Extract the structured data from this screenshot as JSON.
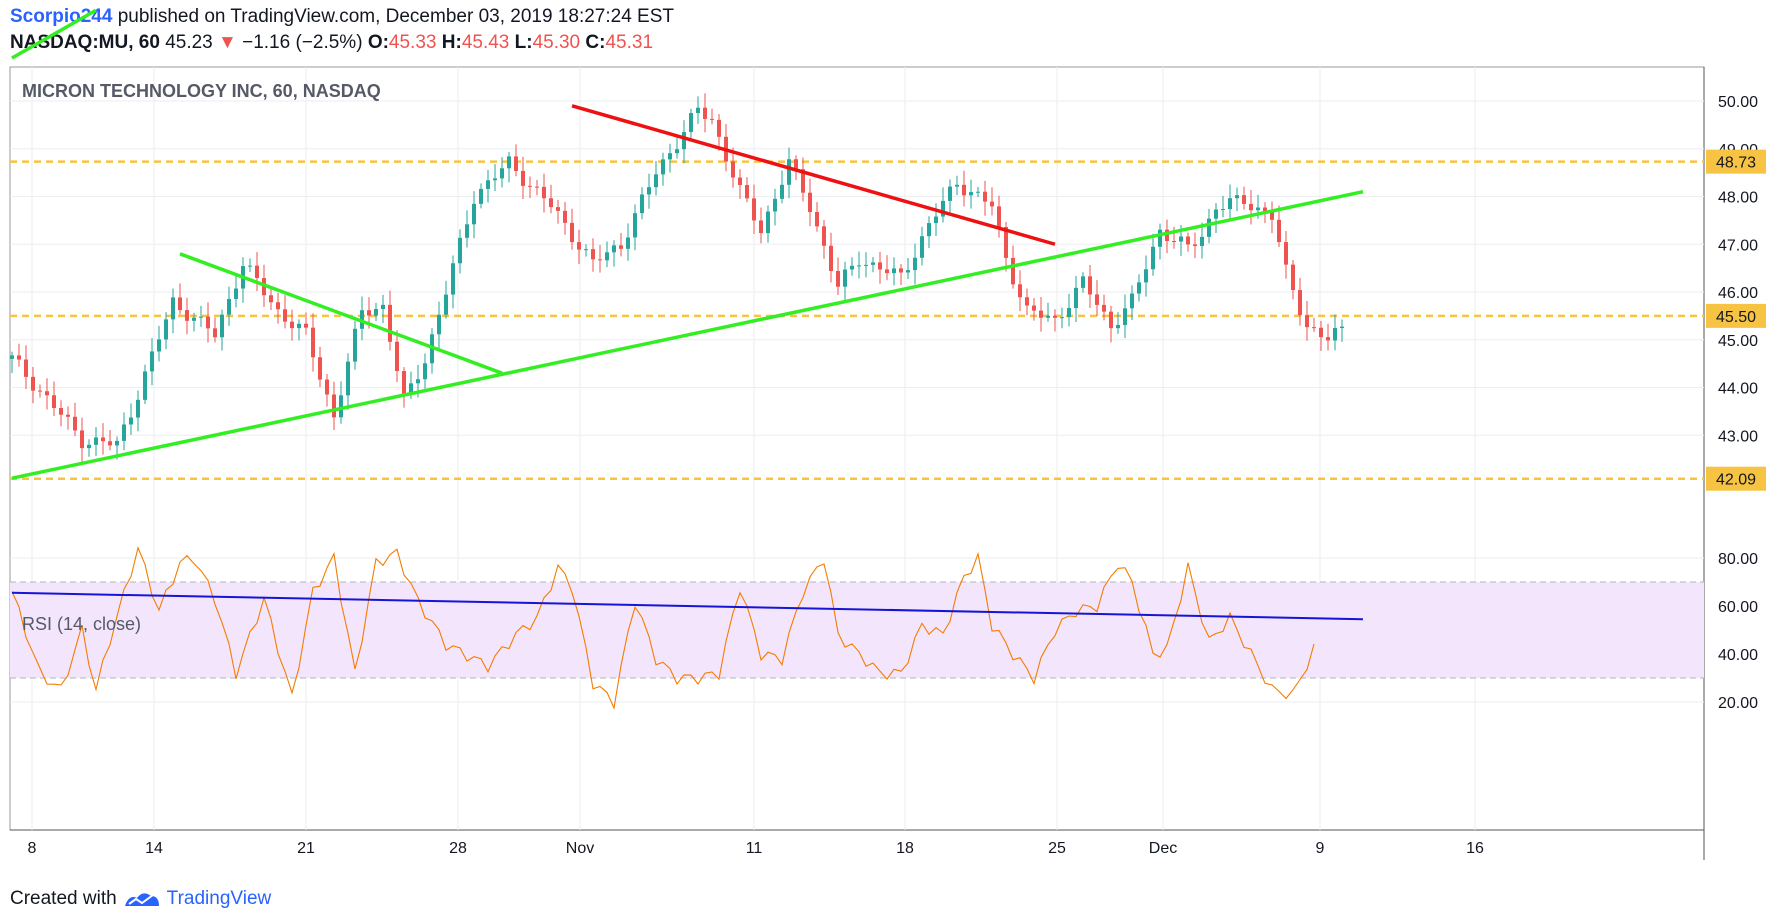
{
  "header": {
    "author": "Scorpio244",
    "published_text": "published on TradingView.com, December 03, 2019 18:27:24 EST",
    "symbol": "NASDAQ:MU, 60",
    "last": "45.23",
    "change_arrow": "▼",
    "change": "−1.16 (−2.5%)",
    "o_label": "O:",
    "o_value": "45.33",
    "h_label": "H:",
    "h_value": "45.43",
    "l_label": "L:",
    "l_value": "45.30",
    "c_label": "C:",
    "c_value": "45.31"
  },
  "footer": {
    "created_with": "Created with",
    "brand": "TradingView"
  },
  "colors": {
    "up": "#26a69a",
    "down": "#ef5350",
    "level": "#f6c343",
    "green_line": "#33ee22",
    "red_line": "#ee1111",
    "rsi_line": "#f57c00",
    "rsi_trend": "#1515d6",
    "rsi_band": "#f3e5fc"
  },
  "chart_data": [
    {
      "type": "candlestick",
      "title": "MICRON TECHNOLOGY INC, 60, NASDAQ",
      "x_ticks": [
        "8",
        "14",
        "21",
        "28",
        "Nov",
        "11",
        "18",
        "25",
        "Dec",
        "9",
        "16"
      ],
      "y_ticks": [
        "50.00",
        "49.00",
        "48.00",
        "47.00",
        "46.00",
        "45.00",
        "44.00",
        "43.00"
      ],
      "ylim": [
        41.1,
        51.0
      ],
      "price_path": [
        [
          0,
          44.6
        ],
        [
          6,
          43.6
        ],
        [
          10,
          42.9
        ],
        [
          15,
          42.8
        ],
        [
          17,
          43.5
        ],
        [
          23,
          45.8
        ],
        [
          29,
          45.1
        ],
        [
          33,
          46.6
        ],
        [
          38,
          45.6
        ],
        [
          42,
          45.1
        ],
        [
          46,
          43.4
        ],
        [
          50,
          45.6
        ],
        [
          53,
          45.7
        ],
        [
          56,
          43.7
        ],
        [
          59,
          44.6
        ],
        [
          62,
          46.0
        ],
        [
          66,
          48.0
        ],
        [
          71,
          48.7
        ],
        [
          77,
          47.8
        ],
        [
          83,
          46.6
        ],
        [
          87,
          47.0
        ],
        [
          92,
          48.5
        ],
        [
          98,
          49.8
        ],
        [
          100,
          49.6
        ],
        [
          104,
          48.1
        ],
        [
          107,
          47.3
        ],
        [
          111,
          48.7
        ],
        [
          114,
          47.8
        ],
        [
          118,
          46.1
        ],
        [
          121,
          46.7
        ],
        [
          127,
          46.3
        ],
        [
          131,
          47.4
        ],
        [
          135,
          48.3
        ],
        [
          140,
          47.8
        ],
        [
          142,
          46.7
        ],
        [
          145,
          45.6
        ],
        [
          149,
          45.4
        ],
        [
          153,
          46.2
        ],
        [
          157,
          45.3
        ],
        [
          160,
          45.8
        ],
        [
          164,
          47.3
        ],
        [
          168,
          46.9
        ],
        [
          170,
          47.2
        ],
        [
          172,
          47.8
        ],
        [
          176,
          47.9
        ],
        [
          180,
          47.6
        ],
        [
          182,
          46.4
        ],
        [
          185,
          45.3
        ],
        [
          188,
          45.0
        ],
        [
          190,
          45.2
        ]
      ],
      "bar_count": 190,
      "levels": [
        "48.73",
        "45.50",
        "42.09"
      ],
      "trendlines": [
        {
          "color": "green",
          "points": [
            [
              0,
              50.9
            ],
            [
              12,
              51.9
            ]
          ]
        },
        {
          "color": "green",
          "points": [
            [
              0,
              42.1
            ],
            [
              193,
              48.1
            ]
          ]
        },
        {
          "color": "green",
          "points": [
            [
              24,
              46.8
            ],
            [
              70,
              44.3
            ]
          ]
        },
        {
          "color": "red",
          "points": [
            [
              80,
              49.9
            ],
            [
              149,
              47.0
            ]
          ]
        }
      ]
    },
    {
      "type": "line",
      "title": "RSI (14, close)",
      "y_ticks": [
        "80.00",
        "60.00",
        "40.00",
        "20.00"
      ],
      "ylim": [
        10,
        90
      ],
      "band": [
        30,
        70
      ],
      "rsi_path": [
        [
          0,
          66
        ],
        [
          4,
          32
        ],
        [
          7,
          25
        ],
        [
          10,
          50
        ],
        [
          12,
          25
        ],
        [
          14,
          46
        ],
        [
          18,
          84
        ],
        [
          21,
          58
        ],
        [
          24,
          78
        ],
        [
          26,
          80
        ],
        [
          29,
          63
        ],
        [
          32,
          32
        ],
        [
          36,
          63
        ],
        [
          40,
          22
        ],
        [
          43,
          66
        ],
        [
          46,
          80
        ],
        [
          49,
          32
        ],
        [
          52,
          78
        ],
        [
          55,
          82
        ],
        [
          58,
          62
        ],
        [
          62,
          44
        ],
        [
          66,
          38
        ],
        [
          68,
          35
        ],
        [
          72,
          48
        ],
        [
          75,
          55
        ],
        [
          78,
          76
        ],
        [
          80,
          68
        ],
        [
          83,
          28
        ],
        [
          86,
          20
        ],
        [
          89,
          62
        ],
        [
          92,
          38
        ],
        [
          95,
          30
        ],
        [
          98,
          30
        ],
        [
          101,
          32
        ],
        [
          104,
          68
        ],
        [
          107,
          40
        ],
        [
          110,
          38
        ],
        [
          113,
          66
        ],
        [
          116,
          80
        ],
        [
          118,
          48
        ],
        [
          121,
          40
        ],
        [
          124,
          32
        ],
        [
          127,
          32
        ],
        [
          130,
          52
        ],
        [
          133,
          48
        ],
        [
          136,
          72
        ],
        [
          138,
          80
        ],
        [
          140,
          52
        ],
        [
          143,
          40
        ],
        [
          146,
          30
        ],
        [
          149,
          50
        ],
        [
          152,
          58
        ],
        [
          155,
          60
        ],
        [
          158,
          78
        ],
        [
          160,
          70
        ],
        [
          163,
          40
        ],
        [
          165,
          42
        ],
        [
          168,
          76
        ],
        [
          171,
          45
        ],
        [
          174,
          55
        ],
        [
          177,
          40
        ],
        [
          180,
          25
        ],
        [
          183,
          23
        ],
        [
          186,
          42
        ]
      ],
      "trendline": [
        [
          0,
          65.5
        ],
        [
          193,
          54.5
        ]
      ]
    }
  ],
  "price_axis_labels": [
    "50.00",
    "49.00",
    "48.00",
    "47.00",
    "46.00",
    "45.00",
    "44.00",
    "43.00"
  ],
  "level_labels": [
    "48.73",
    "45.50",
    "42.09"
  ],
  "rsi_axis_labels": [
    "80.00",
    "60.00",
    "40.00",
    "20.00"
  ],
  "date_labels": [
    "8",
    "14",
    "21",
    "28",
    "Nov",
    "11",
    "18",
    "25",
    "Dec",
    "9",
    "16"
  ],
  "titles": {
    "main": "MICRON TECHNOLOGY INC, 60, NASDAQ",
    "rsi": "RSI (14, close)"
  }
}
